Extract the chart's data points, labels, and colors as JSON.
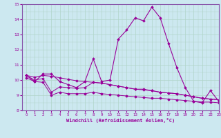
{
  "xlabel": "Windchill (Refroidissement éolien,°C)",
  "bg_color": "#cce8f0",
  "grid_color": "#b0d4c8",
  "line_color": "#990099",
  "spine_color": "#8855aa",
  "x": [
    0,
    1,
    2,
    3,
    4,
    5,
    6,
    7,
    8,
    9,
    10,
    11,
    12,
    13,
    14,
    15,
    16,
    17,
    18,
    19,
    20,
    21,
    22,
    23
  ],
  "line1": [
    10.3,
    9.9,
    10.4,
    10.4,
    9.9,
    9.7,
    9.5,
    9.9,
    11.4,
    9.9,
    10.0,
    12.7,
    13.3,
    14.1,
    13.9,
    14.8,
    14.1,
    12.4,
    10.8,
    9.5,
    8.6,
    8.5,
    9.3,
    8.6
  ],
  "line2": [
    10.3,
    10.2,
    10.3,
    10.25,
    10.15,
    10.05,
    9.95,
    9.9,
    9.85,
    9.8,
    9.7,
    9.6,
    9.5,
    9.4,
    9.4,
    9.3,
    9.2,
    9.15,
    9.1,
    9.0,
    8.9,
    8.8,
    8.75,
    8.7
  ],
  "line3": [
    10.3,
    10.0,
    10.1,
    9.2,
    9.55,
    9.5,
    9.45,
    9.5,
    9.85,
    9.8,
    9.7,
    9.6,
    9.5,
    9.4,
    9.35,
    9.3,
    9.2,
    9.15,
    9.1,
    9.0,
    8.9,
    8.8,
    8.75,
    8.7
  ],
  "line4": [
    10.15,
    9.9,
    9.85,
    9.0,
    9.2,
    9.1,
    9.1,
    9.1,
    9.2,
    9.1,
    9.05,
    9.0,
    8.95,
    8.9,
    8.85,
    8.8,
    8.8,
    8.75,
    8.7,
    8.65,
    8.6,
    8.55,
    8.55,
    8.5
  ],
  "ylim": [
    8,
    15
  ],
  "xlim": [
    -0.5,
    23
  ],
  "yticks": [
    8,
    9,
    10,
    11,
    12,
    13,
    14,
    15
  ],
  "xticks": [
    0,
    1,
    2,
    3,
    4,
    5,
    6,
    7,
    8,
    9,
    10,
    11,
    12,
    13,
    14,
    15,
    16,
    17,
    18,
    19,
    20,
    21,
    22,
    23
  ]
}
